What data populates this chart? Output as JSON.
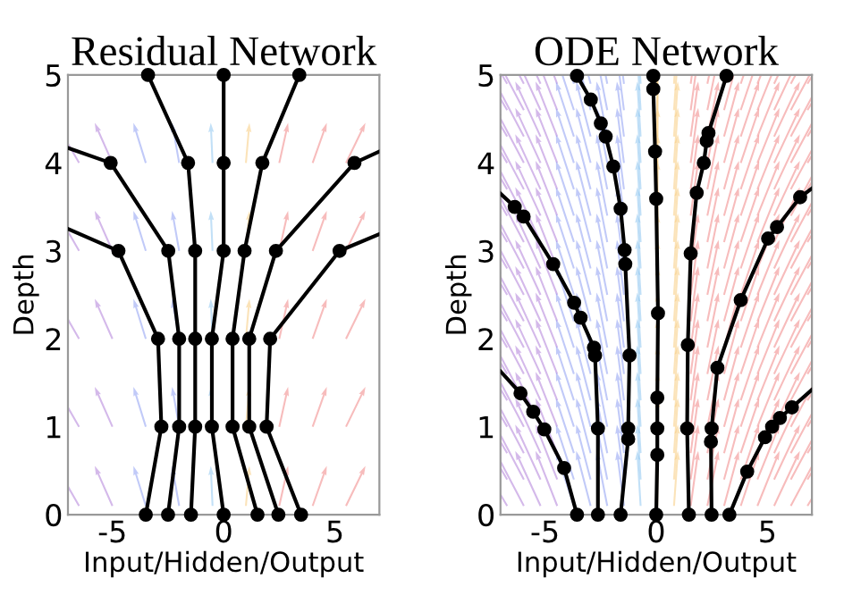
{
  "chart_data": [
    {
      "type": "line",
      "title": "Residual Network",
      "xlabel": "Input/Hidden/Output",
      "ylabel": "Depth",
      "xlim": [
        -7,
        7
      ],
      "ylim": [
        0,
        5
      ],
      "xticks": [
        -5,
        0,
        5
      ],
      "yticks": [
        0,
        1,
        2,
        3,
        4,
        5
      ],
      "grid": false,
      "line_style": "solid",
      "series": [
        {
          "color": "#000000",
          "x": [
            -3.5,
            -2.8,
            -2.95,
            -4.73,
            -7
          ],
          "values": [
            0,
            1,
            2,
            3,
            3.25
          ]
        },
        {
          "color": "#000000",
          "x": [
            -2.5,
            -2.0,
            -2.0,
            -2.49,
            -5.08,
            -7
          ],
          "values": [
            0,
            1,
            2,
            3,
            4,
            4.17
          ]
        },
        {
          "color": "#000000",
          "x": [
            -1.47,
            -1.28,
            -1.28,
            -1.28,
            -1.6,
            -3.4
          ],
          "values": [
            0,
            1,
            2,
            3,
            4,
            5
          ]
        },
        {
          "color": "#000000",
          "x": [
            0,
            -0.53,
            -0.53,
            0,
            0,
            0
          ],
          "values": [
            0,
            1,
            2,
            3,
            4,
            5
          ]
        },
        {
          "color": "#000000",
          "x": [
            1.52,
            0.4,
            0.4,
            0.94,
            1.74,
            3.4
          ],
          "values": [
            0,
            1,
            2,
            3,
            4,
            5
          ]
        },
        {
          "color": "#000000",
          "x": [
            2.46,
            1.15,
            1.15,
            2.35,
            5.88,
            7
          ],
          "values": [
            0,
            1,
            2,
            3,
            4,
            4.13
          ]
        },
        {
          "color": "#000000",
          "x": [
            3.48,
            1.93,
            2.09,
            5.21,
            7
          ],
          "values": [
            0,
            1,
            2,
            3,
            3.19
          ]
        },
        {
          "type": "scatter",
          "color": "#000000",
          "x": [
            -3.5,
            -2.5,
            -1.47,
            0,
            1.52,
            2.46,
            3.48,
            -2.8,
            -2.0,
            -1.28,
            -0.53,
            0.4,
            1.15,
            1.93,
            -2.95,
            -2.0,
            -1.28,
            -0.53,
            0.4,
            1.15,
            2.09,
            -4.73,
            -2.49,
            -1.28,
            0,
            0.94,
            2.35,
            5.21,
            -5.08,
            -1.6,
            0,
            1.74,
            5.88,
            -3.4,
            0,
            3.4
          ],
          "values": [
            0,
            0,
            0,
            0,
            0,
            0,
            0,
            1,
            1,
            1,
            1,
            1,
            1,
            1,
            2,
            2,
            2,
            2,
            2,
            2,
            2,
            3,
            3,
            3,
            3,
            3,
            3,
            3,
            4,
            4,
            4,
            4,
            4,
            5,
            5,
            5
          ]
        }
      ]
    },
    {
      "type": "line",
      "title": "ODE Network",
      "xlabel": "Input/Hidden/Output",
      "ylabel": "Depth",
      "xlim": [
        -7,
        7
      ],
      "ylim": [
        0,
        5
      ],
      "xticks": [
        -5,
        0,
        5
      ],
      "yticks": [
        0,
        1,
        2,
        3,
        4,
        5
      ],
      "grid": false,
      "line_style": "solid",
      "series": [
        {
          "color": "#000000",
          "x": [
            -3.56,
            -4.14,
            -5.03,
            -5.53,
            -6.1,
            -7
          ],
          "values": [
            0,
            0.53,
            0.97,
            1.17,
            1.38,
            1.63
          ]
        },
        {
          "color": "#000000",
          "x": [
            -2.62,
            -2.62,
            -2.75,
            -2.8,
            -3.4,
            -3.69,
            -4.63,
            -5.96,
            -6.36,
            -7
          ],
          "values": [
            0,
            0.98,
            1.81,
            1.9,
            2.24,
            2.41,
            2.85,
            3.39,
            3.5,
            3.65
          ]
        },
        {
          "color": "#000000",
          "x": [
            -1.6,
            -1.26,
            -1.26,
            -1.2,
            -1.39,
            -1.42,
            -1.6,
            -1.93,
            -2.27,
            -2.49,
            -2.94,
            -3.56
          ],
          "values": [
            0,
            0.86,
            0.98,
            1.81,
            2.85,
            3.01,
            3.48,
            3.96,
            4.3,
            4.45,
            4.72,
            4.99
          ]
        },
        {
          "color": "#000000",
          "x": [
            0,
            0.05,
            0.05,
            0.05,
            0.08,
            0,
            -0.05,
            -0.13,
            -0.13
          ],
          "values": [
            0,
            0.68,
            0.98,
            1.33,
            2.29,
            3.59,
            4.13,
            4.84,
            4.99
          ]
        },
        {
          "color": "#000000",
          "x": [
            1.47,
            1.39,
            1.42,
            1.55,
            1.82,
            2.14,
            2.27,
            2.35,
            3.16
          ],
          "values": [
            0,
            0.98,
            1.93,
            2.97,
            3.66,
            4.0,
            4.25,
            4.34,
            4.99
          ]
        },
        {
          "color": "#000000",
          "x": [
            2.49,
            2.46,
            2.49,
            2.75,
            3.8,
            5.03,
            5.43,
            6.47,
            7
          ],
          "values": [
            0,
            0.83,
            0.98,
            1.67,
            2.44,
            3.14,
            3.27,
            3.61,
            3.71
          ]
        },
        {
          "color": "#000000",
          "x": [
            3.29,
            4.09,
            4.89,
            5.21,
            5.56,
            6.1,
            7
          ],
          "values": [
            0,
            0.49,
            0.88,
            1.0,
            1.1,
            1.22,
            1.42
          ]
        },
        {
          "type": "scatter",
          "color": "#000000",
          "x": [
            -3.56,
            -4.14,
            -5.03,
            -5.53,
            -6.1,
            -2.62,
            -2.62,
            -2.75,
            -2.8,
            -3.4,
            -3.69,
            -4.63,
            -5.96,
            -6.36,
            -1.6,
            -1.26,
            -1.26,
            -1.2,
            -1.39,
            -1.42,
            -1.6,
            -1.93,
            -2.27,
            -2.49,
            -2.94,
            -3.56,
            0,
            0.05,
            0.05,
            0.05,
            0.08,
            0,
            -0.05,
            -0.13,
            -0.13,
            1.47,
            1.39,
            1.42,
            1.55,
            1.82,
            2.14,
            2.27,
            2.35,
            3.16,
            2.49,
            2.46,
            2.49,
            2.75,
            3.8,
            5.03,
            5.43,
            6.47,
            3.29,
            4.09,
            4.89,
            5.21,
            5.56,
            6.1
          ],
          "values": [
            0,
            0.53,
            0.97,
            1.17,
            1.38,
            0,
            0.98,
            1.81,
            1.9,
            2.24,
            2.41,
            2.85,
            3.39,
            3.5,
            0,
            0.86,
            0.98,
            1.81,
            2.85,
            3.01,
            3.48,
            3.96,
            4.3,
            4.45,
            4.72,
            4.99,
            0,
            0.68,
            0.98,
            1.33,
            2.29,
            3.59,
            4.13,
            4.84,
            4.99,
            0,
            0.98,
            1.93,
            2.97,
            3.66,
            4.0,
            4.25,
            4.34,
            4.99,
            0,
            0.83,
            0.98,
            1.67,
            2.44,
            3.14,
            3.27,
            3.61,
            0,
            0.49,
            0.88,
            1.0,
            1.1,
            1.22
          ]
        }
      ]
    }
  ]
}
